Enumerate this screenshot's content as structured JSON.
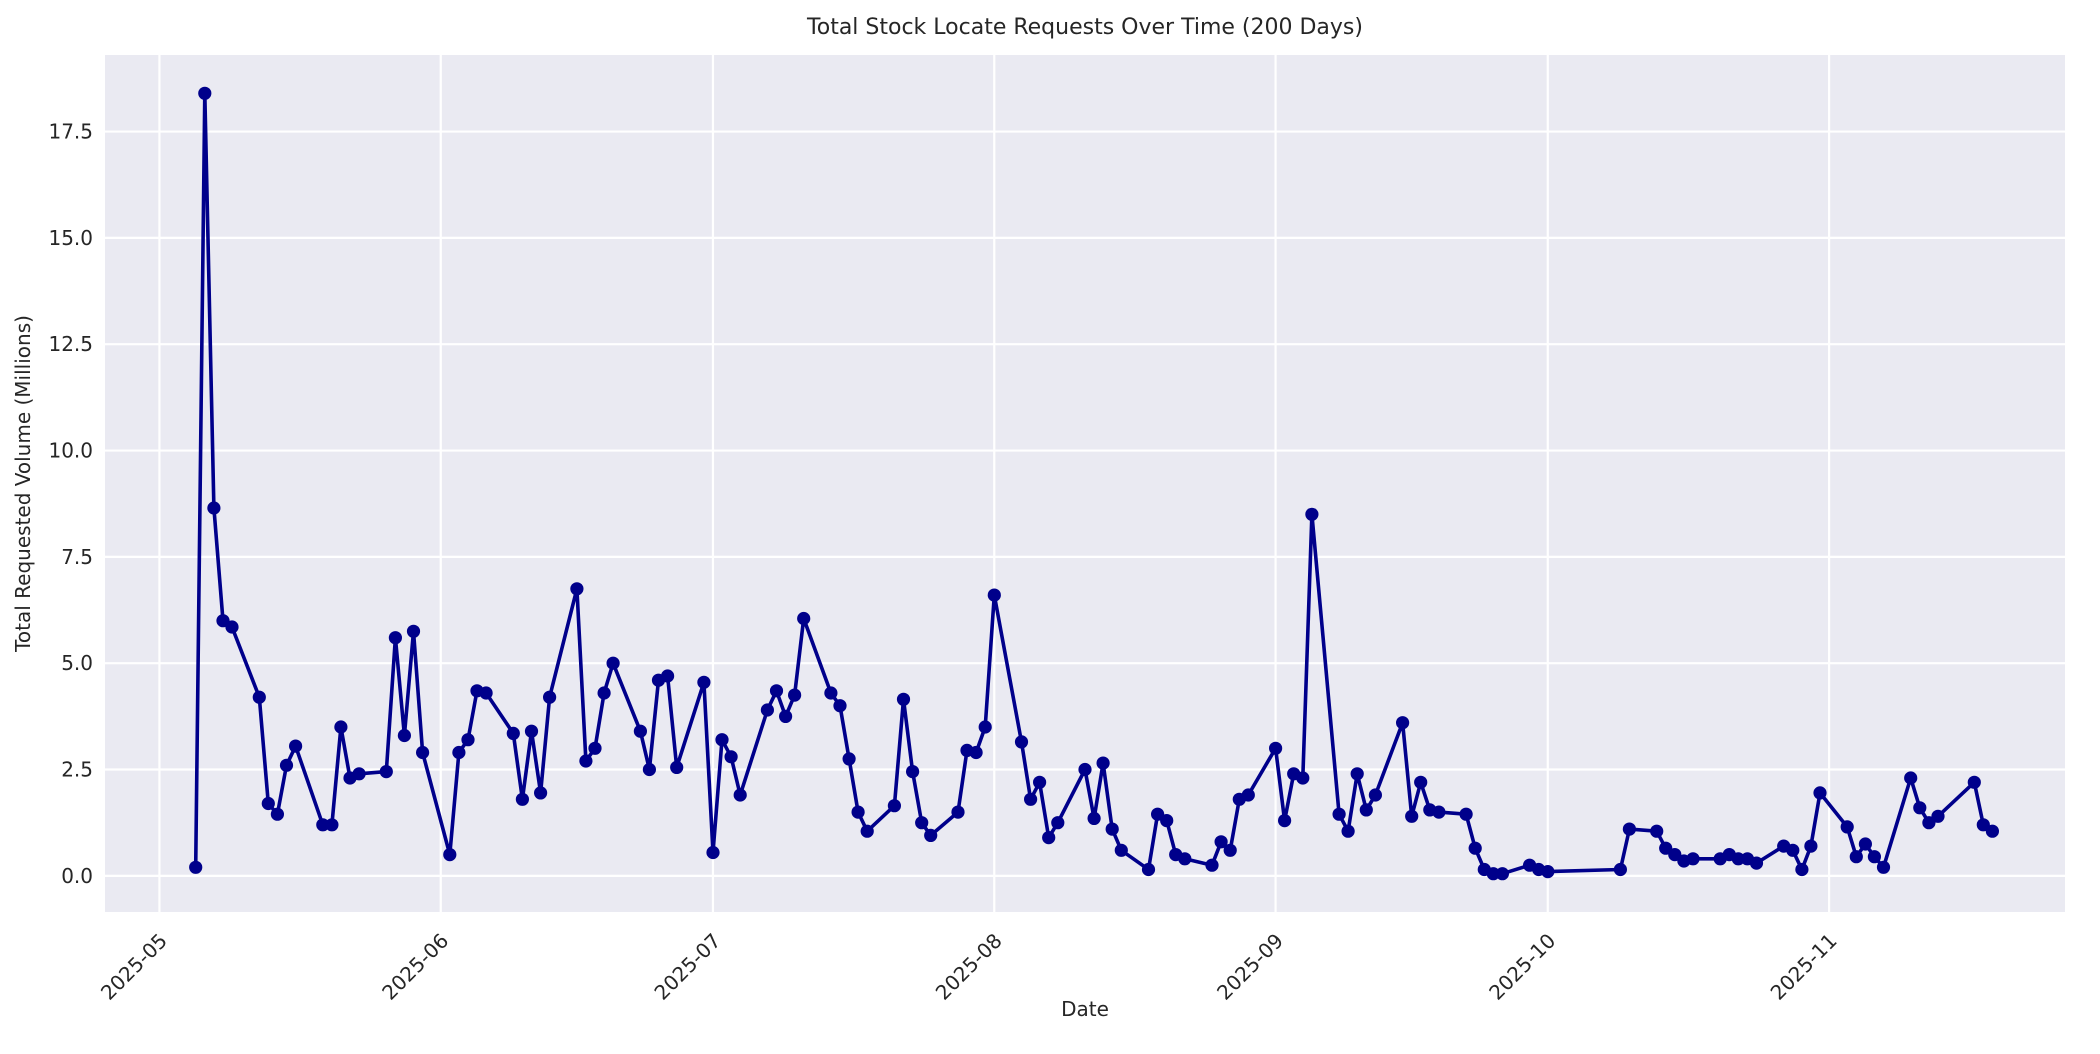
{
  "chart": {
    "title": "Total Stock Locate Requests Over Time (200 Days)",
    "xlabel": "Date",
    "ylabel": "Total Requested Volume (Millions)"
  },
  "style": {
    "figure_bg": "#ffffff",
    "plot_bg": "#eaeaf2",
    "grid_color": "#ffffff",
    "text_color": "#262626",
    "line_color": "#00008b",
    "marker_color": "#00008b"
  },
  "chart_data": {
    "type": "line",
    "title": "Total Stock Locate Requests Over Time (200 Days)",
    "xlabel": "Date",
    "ylabel": "Total Requested Volume (Millions)",
    "grid": true,
    "legend_position": "none",
    "marker": "o",
    "ylim": [
      -0.85,
      19.3
    ],
    "y_ticks": [
      0.0,
      2.5,
      5.0,
      7.5,
      10.0,
      12.5,
      15.0,
      17.5
    ],
    "y_tick_labels": [
      "0.0",
      "2.5",
      "5.0",
      "7.5",
      "10.0",
      "12.5",
      "15.0",
      "17.5"
    ],
    "xlim": [
      "2025-04-25",
      "2025-11-27"
    ],
    "x_ticks": [
      "2025-05-01",
      "2025-06-01",
      "2025-07-01",
      "2025-08-01",
      "2025-09-01",
      "2025-10-01",
      "2025-11-01"
    ],
    "x_tick_labels": [
      "2025-05",
      "2025-06",
      "2025-07",
      "2025-08",
      "2025-09",
      "2025-10",
      "2025-11"
    ],
    "series": [
      {
        "name": "Total Requested Volume (Millions)",
        "points": [
          [
            "2025-05-05",
            0.2
          ],
          [
            "2025-05-06",
            18.4
          ],
          [
            "2025-05-07",
            8.65
          ],
          [
            "2025-05-08",
            6.0
          ],
          [
            "2025-05-09",
            5.85
          ],
          [
            "2025-05-12",
            4.2
          ],
          [
            "2025-05-13",
            1.7
          ],
          [
            "2025-05-14",
            1.45
          ],
          [
            "2025-05-15",
            2.6
          ],
          [
            "2025-05-16",
            3.05
          ],
          [
            "2025-05-19",
            1.2
          ],
          [
            "2025-05-20",
            1.2
          ],
          [
            "2025-05-21",
            3.5
          ],
          [
            "2025-05-22",
            2.3
          ],
          [
            "2025-05-23",
            2.4
          ],
          [
            "2025-05-26",
            2.45
          ],
          [
            "2025-05-27",
            5.6
          ],
          [
            "2025-05-28",
            3.3
          ],
          [
            "2025-05-29",
            5.75
          ],
          [
            "2025-05-30",
            2.9
          ],
          [
            "2025-06-02",
            0.5
          ],
          [
            "2025-06-03",
            2.9
          ],
          [
            "2025-06-04",
            3.2
          ],
          [
            "2025-06-05",
            4.35
          ],
          [
            "2025-06-06",
            4.3
          ],
          [
            "2025-06-09",
            3.35
          ],
          [
            "2025-06-10",
            1.8
          ],
          [
            "2025-06-11",
            3.4
          ],
          [
            "2025-06-12",
            1.95
          ],
          [
            "2025-06-13",
            4.2
          ],
          [
            "2025-06-16",
            6.75
          ],
          [
            "2025-06-17",
            2.7
          ],
          [
            "2025-06-18",
            3.0
          ],
          [
            "2025-06-19",
            4.3
          ],
          [
            "2025-06-20",
            5.0
          ],
          [
            "2025-06-23",
            3.4
          ],
          [
            "2025-06-24",
            2.5
          ],
          [
            "2025-06-25",
            4.6
          ],
          [
            "2025-06-26",
            4.7
          ],
          [
            "2025-06-27",
            2.55
          ],
          [
            "2025-06-30",
            4.55
          ],
          [
            "2025-07-01",
            0.55
          ],
          [
            "2025-07-02",
            3.2
          ],
          [
            "2025-07-03",
            2.8
          ],
          [
            "2025-07-04",
            1.9
          ],
          [
            "2025-07-07",
            3.9
          ],
          [
            "2025-07-08",
            4.35
          ],
          [
            "2025-07-09",
            3.75
          ],
          [
            "2025-07-10",
            4.25
          ],
          [
            "2025-07-11",
            6.05
          ],
          [
            "2025-07-14",
            4.3
          ],
          [
            "2025-07-15",
            4.0
          ],
          [
            "2025-07-16",
            2.75
          ],
          [
            "2025-07-17",
            1.5
          ],
          [
            "2025-07-18",
            1.05
          ],
          [
            "2025-07-21",
            1.65
          ],
          [
            "2025-07-22",
            4.15
          ],
          [
            "2025-07-23",
            2.45
          ],
          [
            "2025-07-24",
            1.25
          ],
          [
            "2025-07-25",
            0.95
          ],
          [
            "2025-07-28",
            1.5
          ],
          [
            "2025-07-29",
            2.95
          ],
          [
            "2025-07-30",
            2.9
          ],
          [
            "2025-07-31",
            3.5
          ],
          [
            "2025-08-01",
            6.6
          ],
          [
            "2025-08-04",
            3.15
          ],
          [
            "2025-08-05",
            1.8
          ],
          [
            "2025-08-06",
            2.2
          ],
          [
            "2025-08-07",
            0.9
          ],
          [
            "2025-08-08",
            1.25
          ],
          [
            "2025-08-11",
            2.5
          ],
          [
            "2025-08-12",
            1.35
          ],
          [
            "2025-08-13",
            2.65
          ],
          [
            "2025-08-14",
            1.1
          ],
          [
            "2025-08-15",
            0.6
          ],
          [
            "2025-08-18",
            0.15
          ],
          [
            "2025-08-19",
            1.45
          ],
          [
            "2025-08-20",
            1.3
          ],
          [
            "2025-08-21",
            0.5
          ],
          [
            "2025-08-22",
            0.4
          ],
          [
            "2025-08-25",
            0.25
          ],
          [
            "2025-08-26",
            0.8
          ],
          [
            "2025-08-27",
            0.6
          ],
          [
            "2025-08-28",
            1.8
          ],
          [
            "2025-08-29",
            1.9
          ],
          [
            "2025-09-01",
            3.0
          ],
          [
            "2025-09-02",
            1.3
          ],
          [
            "2025-09-03",
            2.4
          ],
          [
            "2025-09-04",
            2.3
          ],
          [
            "2025-09-05",
            8.5
          ],
          [
            "2025-09-08",
            1.45
          ],
          [
            "2025-09-09",
            1.05
          ],
          [
            "2025-09-10",
            2.4
          ],
          [
            "2025-09-11",
            1.55
          ],
          [
            "2025-09-12",
            1.9
          ],
          [
            "2025-09-15",
            3.6
          ],
          [
            "2025-09-16",
            1.4
          ],
          [
            "2025-09-17",
            2.2
          ],
          [
            "2025-09-18",
            1.55
          ],
          [
            "2025-09-19",
            1.5
          ],
          [
            "2025-09-22",
            1.45
          ],
          [
            "2025-09-23",
            0.65
          ],
          [
            "2025-09-24",
            0.15
          ],
          [
            "2025-09-25",
            0.05
          ],
          [
            "2025-09-26",
            0.05
          ],
          [
            "2025-09-29",
            0.25
          ],
          [
            "2025-09-30",
            0.15
          ],
          [
            "2025-10-01",
            0.1
          ],
          [
            "2025-10-09",
            0.15
          ],
          [
            "2025-10-10",
            1.1
          ],
          [
            "2025-10-13",
            1.05
          ],
          [
            "2025-10-14",
            0.65
          ],
          [
            "2025-10-15",
            0.5
          ],
          [
            "2025-10-16",
            0.35
          ],
          [
            "2025-10-17",
            0.4
          ],
          [
            "2025-10-20",
            0.4
          ],
          [
            "2025-10-21",
            0.5
          ],
          [
            "2025-10-22",
            0.4
          ],
          [
            "2025-10-23",
            0.4
          ],
          [
            "2025-10-24",
            0.3
          ],
          [
            "2025-10-27",
            0.7
          ],
          [
            "2025-10-28",
            0.6
          ],
          [
            "2025-10-29",
            0.15
          ],
          [
            "2025-10-30",
            0.7
          ],
          [
            "2025-10-31",
            1.95
          ],
          [
            "2025-11-03",
            1.15
          ],
          [
            "2025-11-04",
            0.45
          ],
          [
            "2025-11-05",
            0.75
          ],
          [
            "2025-11-06",
            0.45
          ],
          [
            "2025-11-07",
            0.2
          ],
          [
            "2025-11-10",
            2.3
          ],
          [
            "2025-11-11",
            1.6
          ],
          [
            "2025-11-12",
            1.25
          ],
          [
            "2025-11-13",
            1.4
          ],
          [
            "2025-11-17",
            2.2
          ],
          [
            "2025-11-18",
            1.2
          ],
          [
            "2025-11-19",
            1.05
          ]
        ]
      }
    ]
  }
}
